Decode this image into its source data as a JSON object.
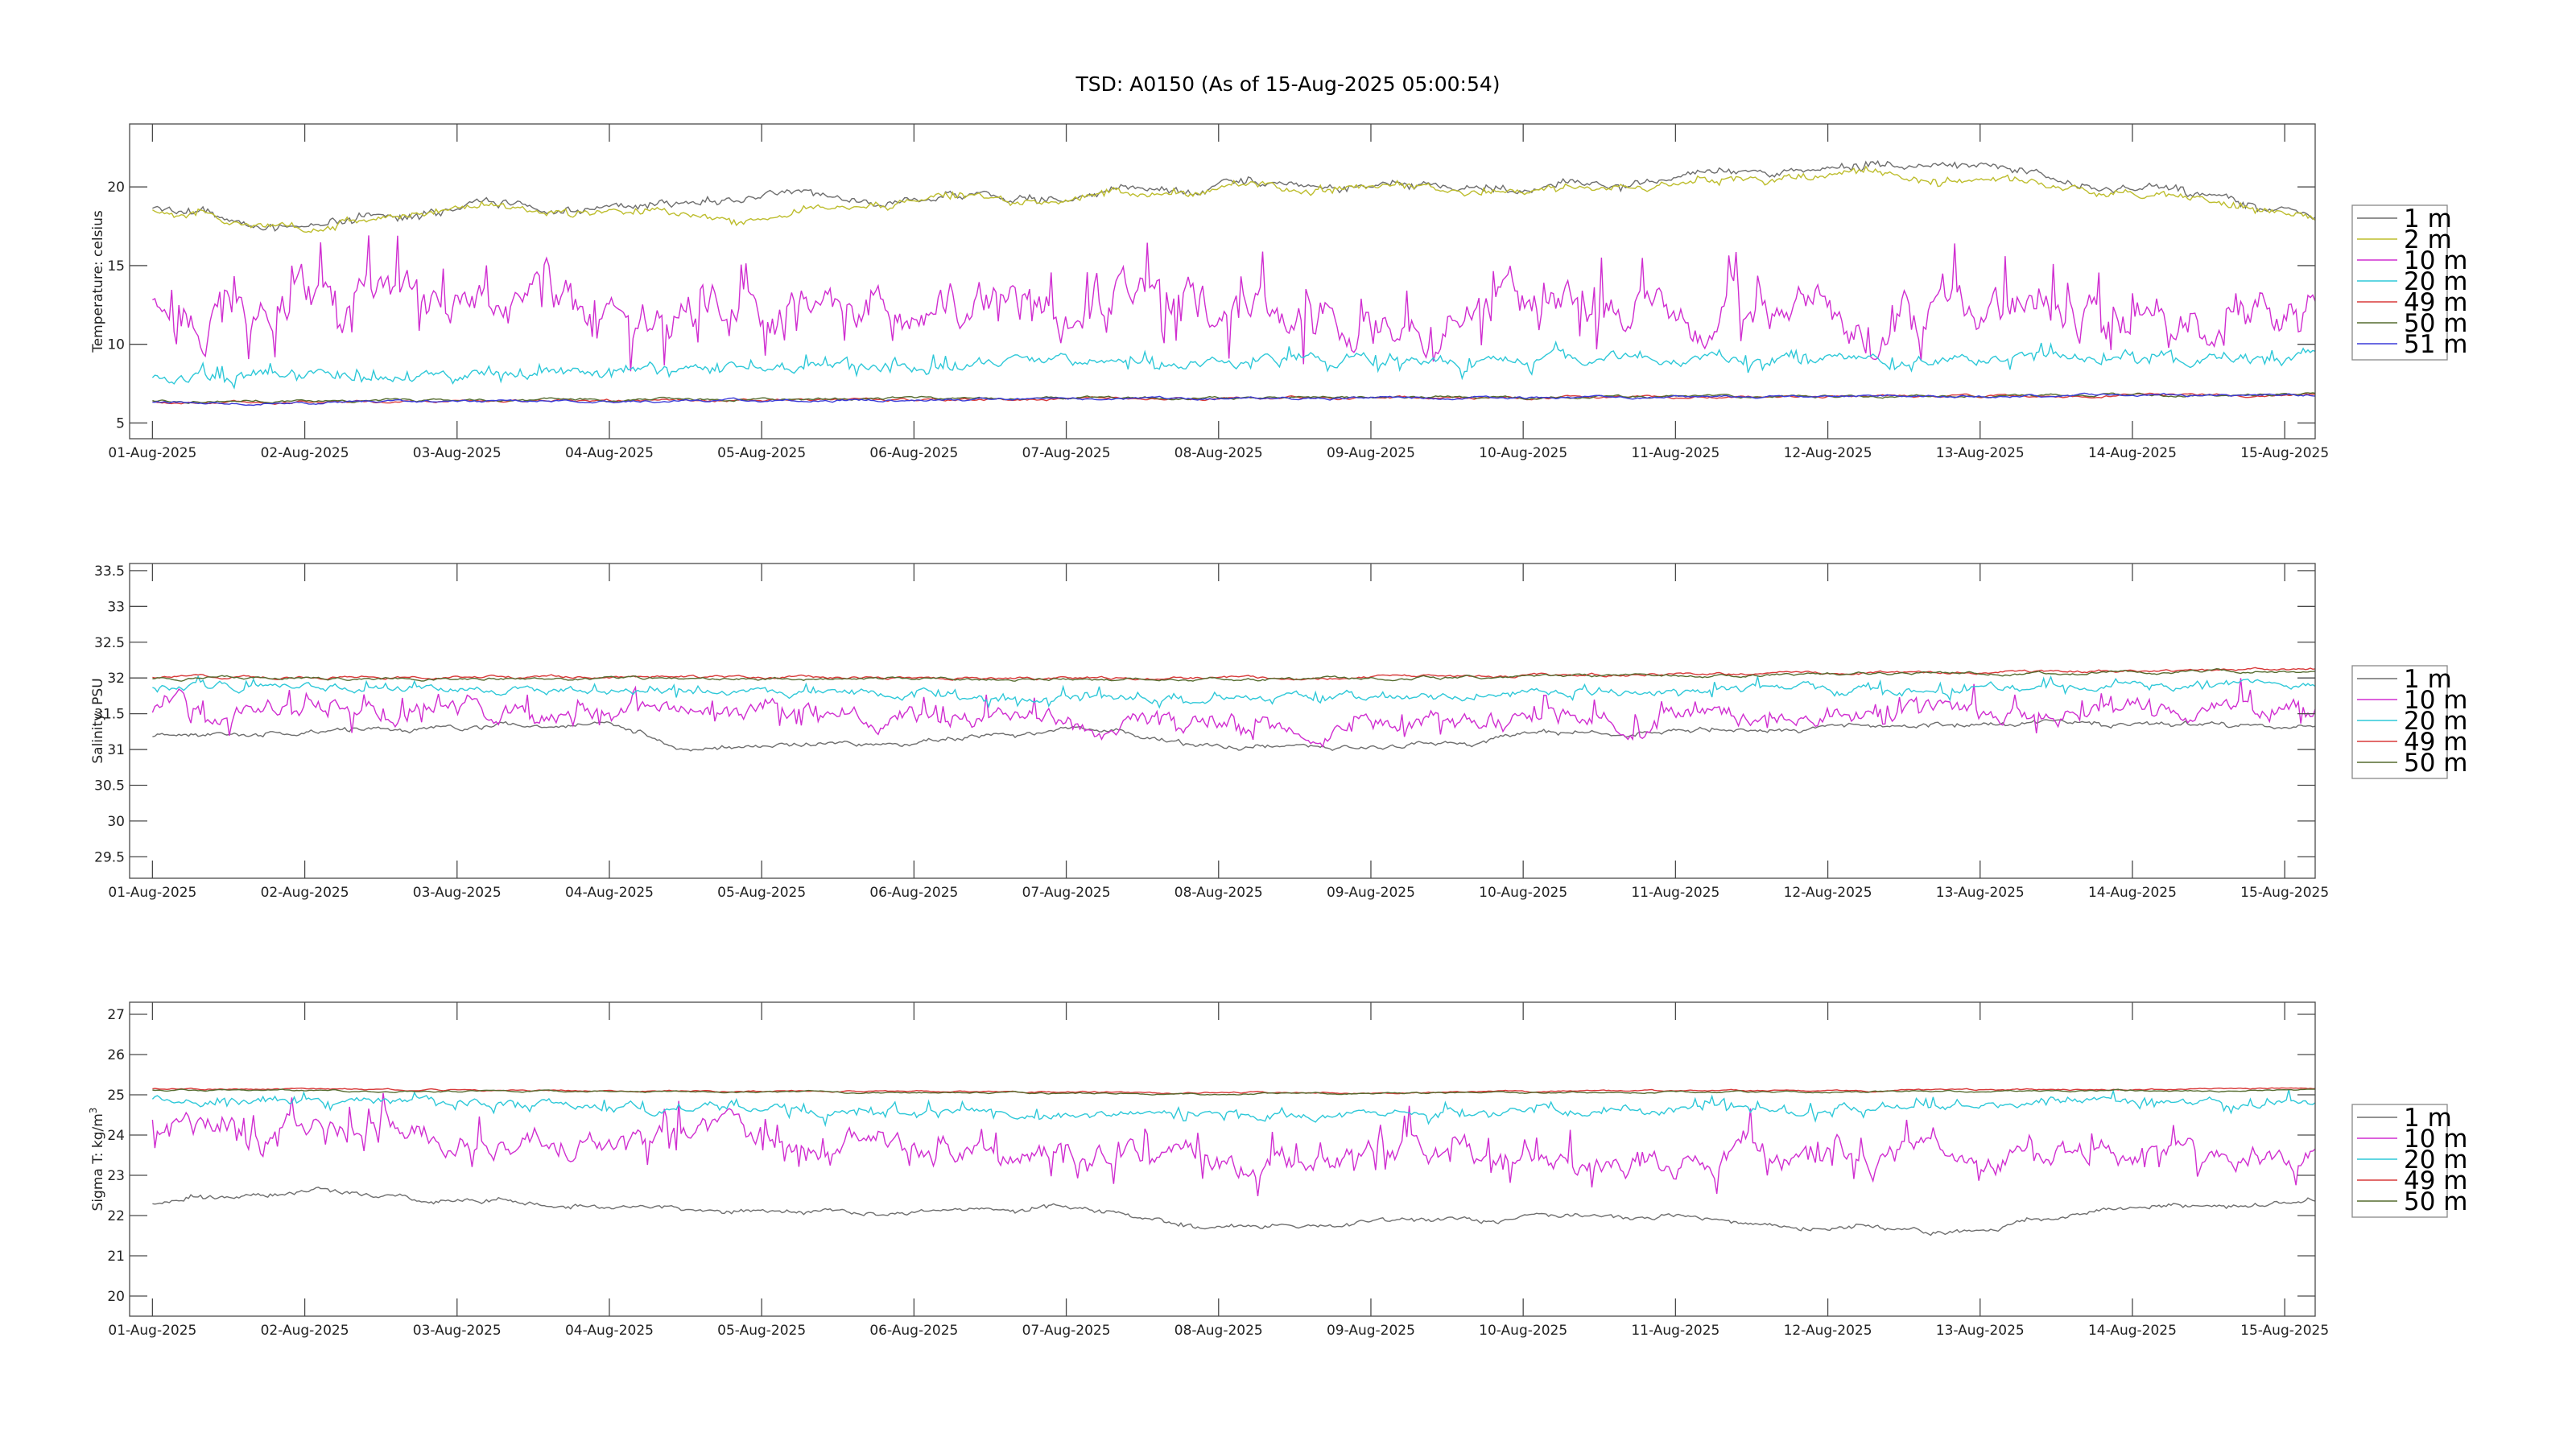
{
  "figure_title": "TSD: A0150 (As of 15-Aug-2025 05:00:54)",
  "chart_data": [
    {
      "type": "line",
      "ylabel": "Temperature:  celsius",
      "ylim": [
        4,
        24
      ],
      "yticks": [
        5,
        10,
        15,
        20
      ],
      "xlabels": [
        "01-Aug-2025",
        "02-Aug-2025",
        "03-Aug-2025",
        "04-Aug-2025",
        "05-Aug-2025",
        "06-Aug-2025",
        "07-Aug-2025",
        "08-Aug-2025",
        "09-Aug-2025",
        "10-Aug-2025",
        "11-Aug-2025",
        "12-Aug-2025",
        "13-Aug-2025",
        "14-Aug-2025",
        "15-Aug-2025"
      ],
      "xlim_days": [
        -0.15,
        14.2
      ],
      "legend": "right",
      "series": [
        {
          "name": "1 m",
          "color": "#6e6e6e",
          "mean": 18.8,
          "noise": 0.3,
          "wave": 1.2,
          "spikes": 0,
          "shape": [
            [
              0,
              18.6
            ],
            [
              1,
              17.4
            ],
            [
              2,
              18.9
            ],
            [
              3,
              18.6
            ],
            [
              4,
              19.5
            ],
            [
              5,
              19.2
            ],
            [
              6,
              19.3
            ],
            [
              7,
              20.2
            ],
            [
              8,
              20.1
            ],
            [
              9,
              19.8
            ],
            [
              10,
              20.5
            ],
            [
              11,
              21.3
            ],
            [
              12,
              21.5
            ],
            [
              13,
              19.8
            ],
            [
              14,
              18.8
            ],
            [
              14.2,
              17.9
            ]
          ]
        },
        {
          "name": "2 m",
          "color": "#bdbd2d",
          "mean": 18.6,
          "noise": 0.3,
          "wave": 1.0,
          "spikes": 0,
          "shape": [
            [
              0,
              18.5
            ],
            [
              1,
              17.3
            ],
            [
              2,
              18.8
            ],
            [
              3,
              18.4
            ],
            [
              4,
              18.1
            ],
            [
              5,
              19.2
            ],
            [
              6,
              19.2
            ],
            [
              7,
              19.9
            ],
            [
              8,
              20.0
            ],
            [
              9,
              19.7
            ],
            [
              10,
              20.2
            ],
            [
              11,
              20.8
            ],
            [
              12,
              20.5
            ],
            [
              13,
              19.6
            ],
            [
              14,
              18.4
            ],
            [
              14.2,
              17.8
            ]
          ]
        },
        {
          "name": "10 m",
          "color": "#d02ed0",
          "mean": 12.5,
          "noise": 2.3,
          "wave": 0,
          "spikes": 1,
          "shape": [
            [
              0,
              12
            ],
            [
              14.2,
              12.5
            ]
          ]
        },
        {
          "name": "20 m",
          "color": "#2ec8d8",
          "mean": 8.6,
          "noise": 0.5,
          "wave": 0,
          "spikes": 2,
          "shape": [
            [
              0,
              7.8
            ],
            [
              7,
              9
            ],
            [
              14.2,
              9.2
            ]
          ]
        },
        {
          "name": "49 m",
          "color": "#d83a3a",
          "mean": 6.7,
          "noise": 0.12,
          "wave": 0,
          "spikes": 0,
          "shape": [
            [
              0,
              6.3
            ],
            [
              14.2,
              6.8
            ]
          ]
        },
        {
          "name": "50 m",
          "color": "#556b2f",
          "mean": 6.8,
          "noise": 0.12,
          "wave": 0,
          "spikes": 0,
          "shape": [
            [
              0,
              6.4
            ],
            [
              14.2,
              6.8
            ]
          ]
        },
        {
          "name": "51 m",
          "color": "#3a3ad8",
          "mean": 6.7,
          "noise": 0.12,
          "wave": 0,
          "spikes": 0,
          "shape": [
            [
              0,
              6.3
            ],
            [
              14.2,
              6.8
            ]
          ]
        }
      ]
    },
    {
      "type": "line",
      "ylabel": "Salinity:  PSU",
      "ylim": [
        29.2,
        33.6
      ],
      "yticks": [
        29.5,
        30,
        30.5,
        31,
        31.5,
        32,
        32.5,
        33,
        33.5
      ],
      "xlabels": [
        "01-Aug-2025",
        "02-Aug-2025",
        "03-Aug-2025",
        "04-Aug-2025",
        "05-Aug-2025",
        "06-Aug-2025",
        "07-Aug-2025",
        "08-Aug-2025",
        "09-Aug-2025",
        "10-Aug-2025",
        "11-Aug-2025",
        "12-Aug-2025",
        "13-Aug-2025",
        "14-Aug-2025",
        "15-Aug-2025"
      ],
      "xlim_days": [
        -0.15,
        14.2
      ],
      "legend": "right",
      "series": [
        {
          "name": "1 m",
          "color": "#6e6e6e",
          "mean": 31.2,
          "noise": 0.05,
          "wave": 0.1,
          "spikes": 0,
          "shape": [
            [
              0,
              31.2
            ],
            [
              3,
              31.35
            ],
            [
              3.5,
              31.0
            ],
            [
              5,
              31.1
            ],
            [
              6,
              31.3
            ],
            [
              7,
              31.05
            ],
            [
              8,
              31.0
            ],
            [
              9,
              31.2
            ],
            [
              11,
              31.3
            ],
            [
              12,
              31.35
            ],
            [
              14.2,
              31.35
            ]
          ]
        },
        {
          "name": "10 m",
          "color": "#d02ed0",
          "mean": 31.45,
          "noise": 0.2,
          "wave": 0,
          "spikes": 3,
          "shape": [
            [
              0,
              31.6
            ],
            [
              7,
              31.35
            ],
            [
              14.2,
              31.6
            ]
          ]
        },
        {
          "name": "20 m",
          "color": "#2ec8d8",
          "mean": 31.75,
          "noise": 0.08,
          "wave": 0,
          "spikes": 4,
          "shape": [
            [
              0,
              31.9
            ],
            [
              7,
              31.7
            ],
            [
              14.2,
              31.95
            ]
          ]
        },
        {
          "name": "49 m",
          "color": "#d83a3a",
          "mean": 32.0,
          "noise": 0.03,
          "wave": 0,
          "spikes": 0,
          "shape": [
            [
              0,
              32.02
            ],
            [
              7,
              32.0
            ],
            [
              14.2,
              32.12
            ]
          ]
        },
        {
          "name": "50 m",
          "color": "#556b2f",
          "mean": 32.0,
          "noise": 0.03,
          "wave": 0,
          "spikes": 0,
          "shape": [
            [
              0,
              32.0
            ],
            [
              7,
              31.98
            ],
            [
              14.2,
              32.1
            ]
          ]
        }
      ]
    },
    {
      "type": "line",
      "ylabel": "Sigma T:  kg/m",
      "ylabel_sup": "3",
      "ylim": [
        19.5,
        27.3
      ],
      "yticks": [
        20,
        21,
        22,
        23,
        24,
        25,
        26,
        27
      ],
      "xlabels": [
        "01-Aug-2025",
        "02-Aug-2025",
        "03-Aug-2025",
        "04-Aug-2025",
        "05-Aug-2025",
        "06-Aug-2025",
        "07-Aug-2025",
        "08-Aug-2025",
        "09-Aug-2025",
        "10-Aug-2025",
        "11-Aug-2025",
        "12-Aug-2025",
        "13-Aug-2025",
        "14-Aug-2025",
        "15-Aug-2025"
      ],
      "xlim_days": [
        -0.15,
        14.2
      ],
      "legend": "right",
      "series": [
        {
          "name": "1 m",
          "color": "#6e6e6e",
          "mean": 22.2,
          "noise": 0.08,
          "wave": 0.2,
          "spikes": 0,
          "shape": [
            [
              0,
              22.3
            ],
            [
              1,
              22.6
            ],
            [
              2,
              22.4
            ],
            [
              3,
              22.2
            ],
            [
              4,
              22.1
            ],
            [
              5,
              22.1
            ],
            [
              6,
              22.2
            ],
            [
              7,
              21.7
            ],
            [
              8,
              21.8
            ],
            [
              9,
              22.0
            ],
            [
              10,
              22.0
            ],
            [
              11,
              21.7
            ],
            [
              12,
              21.6
            ],
            [
              13,
              22.2
            ],
            [
              14,
              22.3
            ],
            [
              14.2,
              22.4
            ]
          ]
        },
        {
          "name": "10 m",
          "color": "#d02ed0",
          "mean": 23.5,
          "noise": 0.5,
          "wave": 0,
          "spikes": 5,
          "shape": [
            [
              0,
              24.2
            ],
            [
              7,
              23.4
            ],
            [
              14.2,
              23.5
            ]
          ]
        },
        {
          "name": "20 m",
          "color": "#2ec8d8",
          "mean": 24.6,
          "noise": 0.15,
          "wave": 0,
          "spikes": 6,
          "shape": [
            [
              0,
              24.9
            ],
            [
              7,
              24.5
            ],
            [
              14.2,
              24.8
            ]
          ]
        },
        {
          "name": "49 m",
          "color": "#d83a3a",
          "mean": 25.1,
          "noise": 0.03,
          "wave": 0,
          "spikes": 0,
          "shape": [
            [
              0,
              25.15
            ],
            [
              7,
              25.05
            ],
            [
              14.2,
              25.15
            ]
          ]
        },
        {
          "name": "50 m",
          "color": "#556b2f",
          "mean": 25.1,
          "noise": 0.03,
          "wave": 0,
          "spikes": 0,
          "shape": [
            [
              0,
              25.12
            ],
            [
              7,
              25.02
            ],
            [
              14.2,
              25.12
            ]
          ]
        }
      ]
    }
  ]
}
